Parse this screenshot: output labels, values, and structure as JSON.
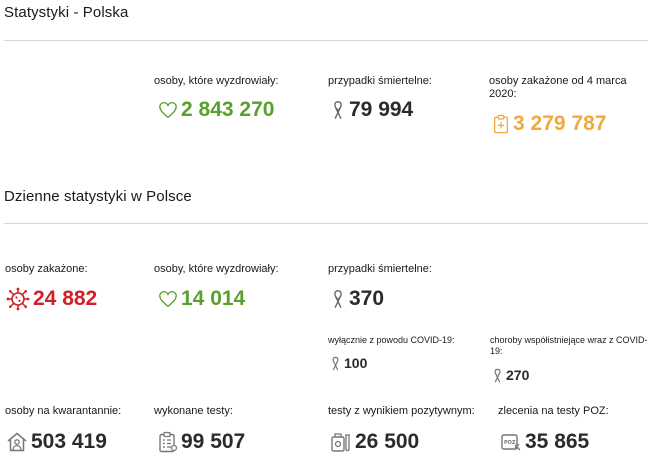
{
  "section1": {
    "title": "Statystyki - Polska",
    "recovered": {
      "label": "osoby, które wyzdrowiały:",
      "value": "2 843 270",
      "icon": "heart-icon"
    },
    "deaths": {
      "label": "przypadki śmiertelne:",
      "value": "79 994",
      "icon": "ribbon-icon"
    },
    "infected": {
      "label": "osoby zakażone od 4 marca 2020:",
      "value": "3 279 787",
      "icon": "clipboard-plus-icon"
    }
  },
  "section2": {
    "title": "Dzienne statystyki w Polsce",
    "infected": {
      "label": "osoby zakażone:",
      "value": "24 882",
      "icon": "virus-icon"
    },
    "recovered": {
      "label": "osoby, które wyzdrowiały:",
      "value": "14 014",
      "icon": "heart-icon"
    },
    "deaths": {
      "label": "przypadki śmiertelne:",
      "value": "370",
      "icon": "ribbon-icon"
    },
    "deaths_covid_only": {
      "label": "wyłącznie z powodu COVID-19:",
      "value": "100",
      "icon": "ribbon-icon"
    },
    "deaths_comorbid": {
      "label": "choroby współistniejące wraz z COVID-19:",
      "value": "270",
      "icon": "ribbon-icon"
    },
    "quarantine": {
      "label": "osoby na kwarantannie:",
      "value": "503 419",
      "icon": "house-person-icon"
    },
    "tests": {
      "label": "wykonane testy:",
      "value": "99 507",
      "icon": "clipboard-list-icon"
    },
    "positive_tests": {
      "label": "testy z wynikiem pozytywnym:",
      "value": "26 500",
      "icon": "test-tube-icon"
    },
    "poz_orders": {
      "label": "zlecenia na testy POZ:",
      "value": "35 865",
      "icon": "poz-card-icon"
    }
  },
  "colors": {
    "green": "#5aa02c",
    "orange": "#f2a93b",
    "red": "#d0202a",
    "dark": "#2b2b2b",
    "gray": "#777777"
  }
}
